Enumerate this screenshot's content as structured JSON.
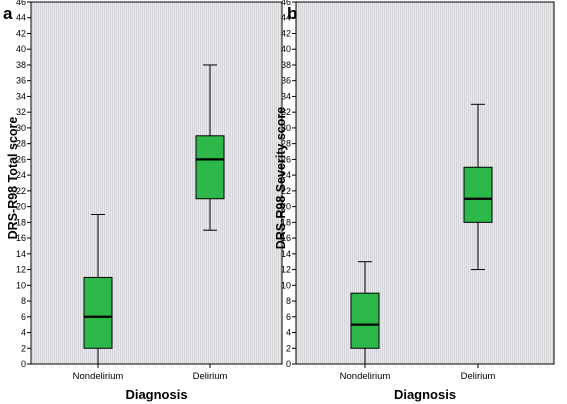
{
  "colors": {
    "box_fill": "#2db84a",
    "plot_background": "#eaeaee",
    "grid": "#c8c8cc"
  },
  "chart_data": [
    {
      "type": "box",
      "panel": "a",
      "xlabel": "Diagnosis",
      "ylabel": "DRS-R98 Total score",
      "ylim": [
        0,
        46
      ],
      "yticks": [
        0,
        2,
        4,
        6,
        8,
        10,
        12,
        14,
        16,
        18,
        20,
        22,
        24,
        26,
        28,
        30,
        32,
        34,
        36,
        38,
        40,
        42,
        44,
        46
      ],
      "categories": [
        "Nondelirium",
        "Delirium"
      ],
      "boxes": [
        {
          "category": "Nondelirium",
          "min": 0,
          "q1": 2,
          "median": 6,
          "q3": 11,
          "max": 19
        },
        {
          "category": "Delirium",
          "min": 17,
          "q1": 21,
          "median": 26,
          "q3": 29,
          "max": 38
        }
      ],
      "grid": true
    },
    {
      "type": "box",
      "panel": "b",
      "xlabel": "Diagnosis",
      "ylabel": "DRS-R98 Severity score",
      "ylim": [
        0,
        46
      ],
      "yticks": [
        0,
        2,
        4,
        6,
        8,
        10,
        12,
        14,
        16,
        18,
        20,
        22,
        24,
        26,
        28,
        30,
        32,
        34,
        36,
        38,
        40,
        42,
        44,
        46
      ],
      "categories": [
        "Nondelirium",
        "Delirium"
      ],
      "boxes": [
        {
          "category": "Nondelirium",
          "min": 0,
          "q1": 2,
          "median": 5,
          "q3": 9,
          "max": 13
        },
        {
          "category": "Delirium",
          "min": 12,
          "q1": 18,
          "median": 21,
          "q3": 25,
          "max": 33
        }
      ],
      "grid": true
    }
  ]
}
